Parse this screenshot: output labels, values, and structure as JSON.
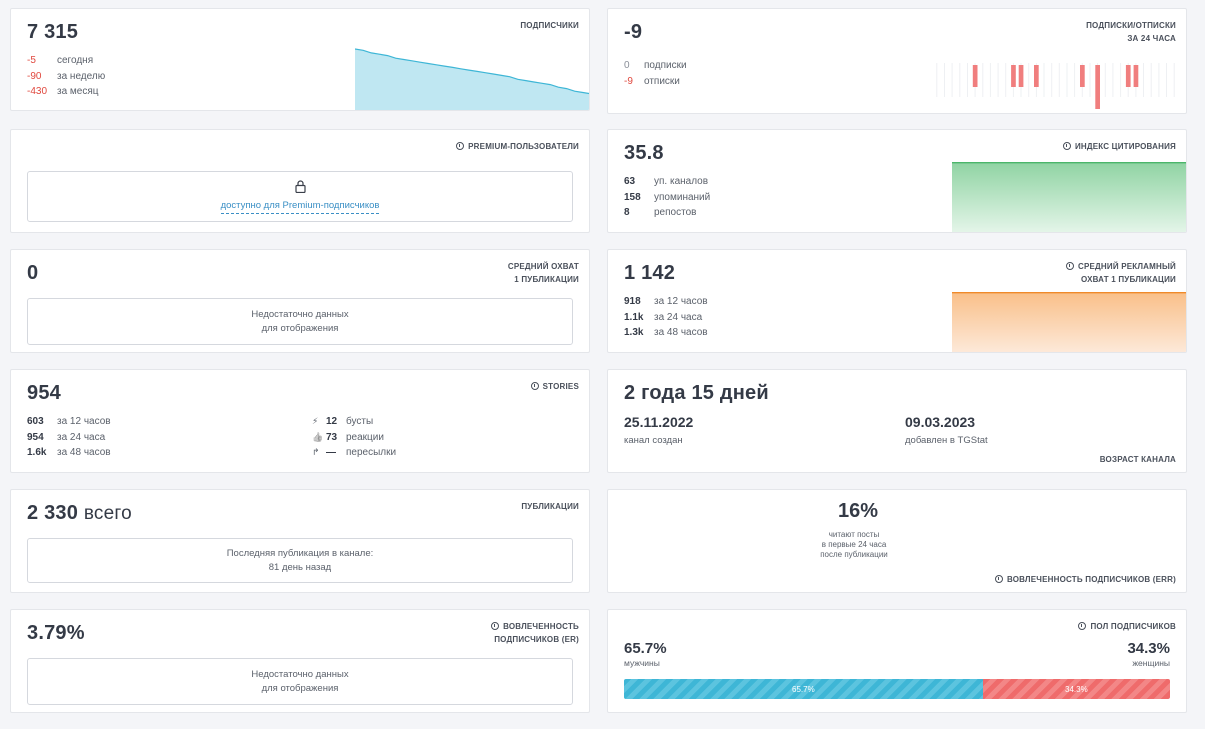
{
  "subscribers": {
    "label": "ПОДПИСЧИКИ",
    "value": "7 315",
    "rows": [
      {
        "value": "-5",
        "text": "сегодня"
      },
      {
        "value": "-90",
        "text": "за неделю"
      },
      {
        "value": "-430",
        "text": "за месяц"
      }
    ],
    "sparkline": [
      47,
      46,
      44,
      43,
      42,
      40,
      39,
      38,
      37,
      36,
      35,
      34,
      33,
      32,
      31,
      30,
      29,
      28,
      27,
      26,
      24,
      23,
      22,
      21,
      20,
      18,
      17,
      15,
      14,
      13
    ]
  },
  "subs_unsubs": {
    "label_line1": "ПОДПИСКИ/ОТПИСКИ",
    "label_line2": "ЗА 24 ЧАСА",
    "value": "-9",
    "rows": [
      {
        "value": "0",
        "text": "подписки"
      },
      {
        "value": "-9",
        "text": "отписки"
      }
    ],
    "hourly_unsubs": [
      0,
      0,
      0,
      0,
      0,
      1,
      0,
      0,
      0,
      0,
      1,
      1,
      0,
      1,
      0,
      0,
      0,
      0,
      0,
      1,
      0,
      2,
      0,
      0,
      0,
      1,
      1,
      0,
      0,
      0,
      0,
      0
    ]
  },
  "premium": {
    "label": "PREMIUM-ПОЛЬЗОВАТЕЛИ",
    "link": "доступно для Premium-подписчиков"
  },
  "citation": {
    "label": "ИНДЕКС ЦИТИРОВАНИЯ",
    "value": "35.8",
    "rows": [
      {
        "value": "63",
        "text": "уп. каналов"
      },
      {
        "value": "158",
        "text": "упоминаний"
      },
      {
        "value": "8",
        "text": "репостов"
      }
    ]
  },
  "avg_reach": {
    "label_line1": "СРЕДНИЙ ОХВАТ",
    "label_line2": "1 ПУБЛИКАЦИИ",
    "value": "0",
    "note_line1": "Недостаточно данных",
    "note_line2": "для отображения"
  },
  "ad_reach": {
    "label_line1": "СРЕДНИЙ РЕКЛАМНЫЙ",
    "label_line2": "ОХВАТ 1 ПУБЛИКАЦИИ",
    "value": "1 142",
    "rows": [
      {
        "value": "918",
        "text": "за 12 часов"
      },
      {
        "value": "1.1k",
        "text": "за 24 часа"
      },
      {
        "value": "1.3k",
        "text": "за 48 часов"
      }
    ]
  },
  "stories": {
    "label": "STORIES",
    "value": "954",
    "rows": [
      {
        "value": "603",
        "text": "за 12 часов"
      },
      {
        "value": "954",
        "text": "за 24 часа"
      },
      {
        "value": "1.6k",
        "text": "за 48 часов"
      }
    ],
    "right_rows": [
      {
        "icon": "⚡",
        "value": "12",
        "text": "бусты"
      },
      {
        "icon": "👍",
        "value": "73",
        "text": "реакции"
      },
      {
        "icon": "↱",
        "value": "—",
        "text": "пересылки"
      }
    ]
  },
  "channel_age": {
    "label": "ВОЗРАСТ КАНАЛА",
    "value": "2 года 15 дней",
    "created_date": "25.11.2022",
    "created_text": "канал создан",
    "added_date": "09.03.2023",
    "added_text": "добавлен в TGStat"
  },
  "publications": {
    "label": "ПУБЛИКАЦИИ",
    "value": "2 330",
    "suffix": "всего",
    "note_line1": "Последняя публикация в канале:",
    "note_line2": "81 день назад"
  },
  "err": {
    "label": "ВОВЛЕЧЕННОСТЬ ПОДПИСЧИКОВ (ERR)",
    "value": "16%",
    "desc_line1": "читают посты",
    "desc_line2": "в первые 24 часа",
    "desc_line3": "после публикации"
  },
  "er": {
    "label_line1": "ВОВЛЕЧЕННОСТЬ",
    "label_line2": "ПОДПИСЧИКОВ (ER)",
    "value": "3.79%",
    "note_line1": "Недостаточно данных",
    "note_line2": "для отображения"
  },
  "gender": {
    "label": "ПОЛ ПОДПИСЧИКОВ",
    "male_value": "65.7%",
    "male_text": "мужчины",
    "female_value": "34.3%",
    "female_text": "женщины",
    "male_share": 65.7,
    "female_share": 34.3
  },
  "colors": {
    "negative": "#e0483e",
    "sparkline": "#3eb6d6",
    "citation": "#4bb56a",
    "ad_reach": "#ef8a2a",
    "bars": "#f07e7e"
  }
}
